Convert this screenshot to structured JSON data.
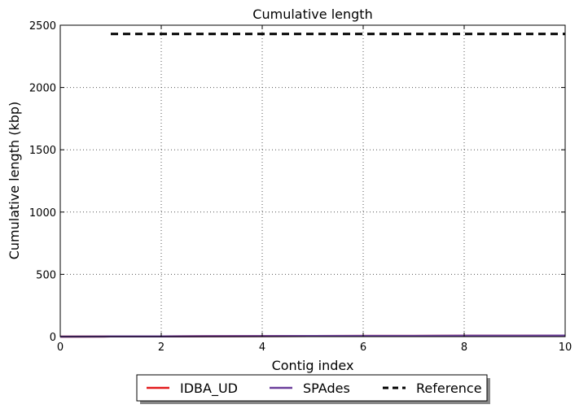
{
  "chart_data": {
    "type": "line",
    "title": "Cumulative length",
    "xlabel": "Contig index",
    "ylabel": "Cumulative length (kbp)",
    "xlim": [
      0,
      10
    ],
    "ylim": [
      0,
      2500
    ],
    "x_ticks": [
      0,
      2,
      4,
      6,
      8,
      10
    ],
    "x_tick_labels": [
      "0",
      "2",
      "4",
      "6",
      "8",
      "10"
    ],
    "y_ticks": [
      0,
      500,
      1000,
      1500,
      2000,
      2500
    ],
    "y_tick_labels": [
      "0",
      "500",
      "1000",
      "1500",
      "2000",
      "2500"
    ],
    "grid": true,
    "legend_position": "bottom-center",
    "series": [
      {
        "name": "IDBA_UD",
        "color": "#e31a1c",
        "style": "solid",
        "x": [
          0,
          1,
          2,
          3,
          4,
          5,
          6,
          7,
          8,
          9,
          10
        ],
        "y": [
          0,
          1,
          2,
          3,
          4,
          5,
          6,
          6,
          7,
          7,
          8
        ]
      },
      {
        "name": "SPAdes",
        "color": "#6a3d9a",
        "style": "solid",
        "x": [
          0,
          1,
          2,
          3,
          4,
          5,
          6,
          7,
          8,
          9,
          10
        ],
        "y": [
          0,
          1,
          2,
          3,
          4,
          5,
          6,
          6,
          7,
          7,
          8
        ]
      },
      {
        "name": "Reference",
        "color": "#000000",
        "style": "dashed",
        "x": [
          1,
          10
        ],
        "y": [
          2430,
          2430
        ]
      }
    ]
  }
}
